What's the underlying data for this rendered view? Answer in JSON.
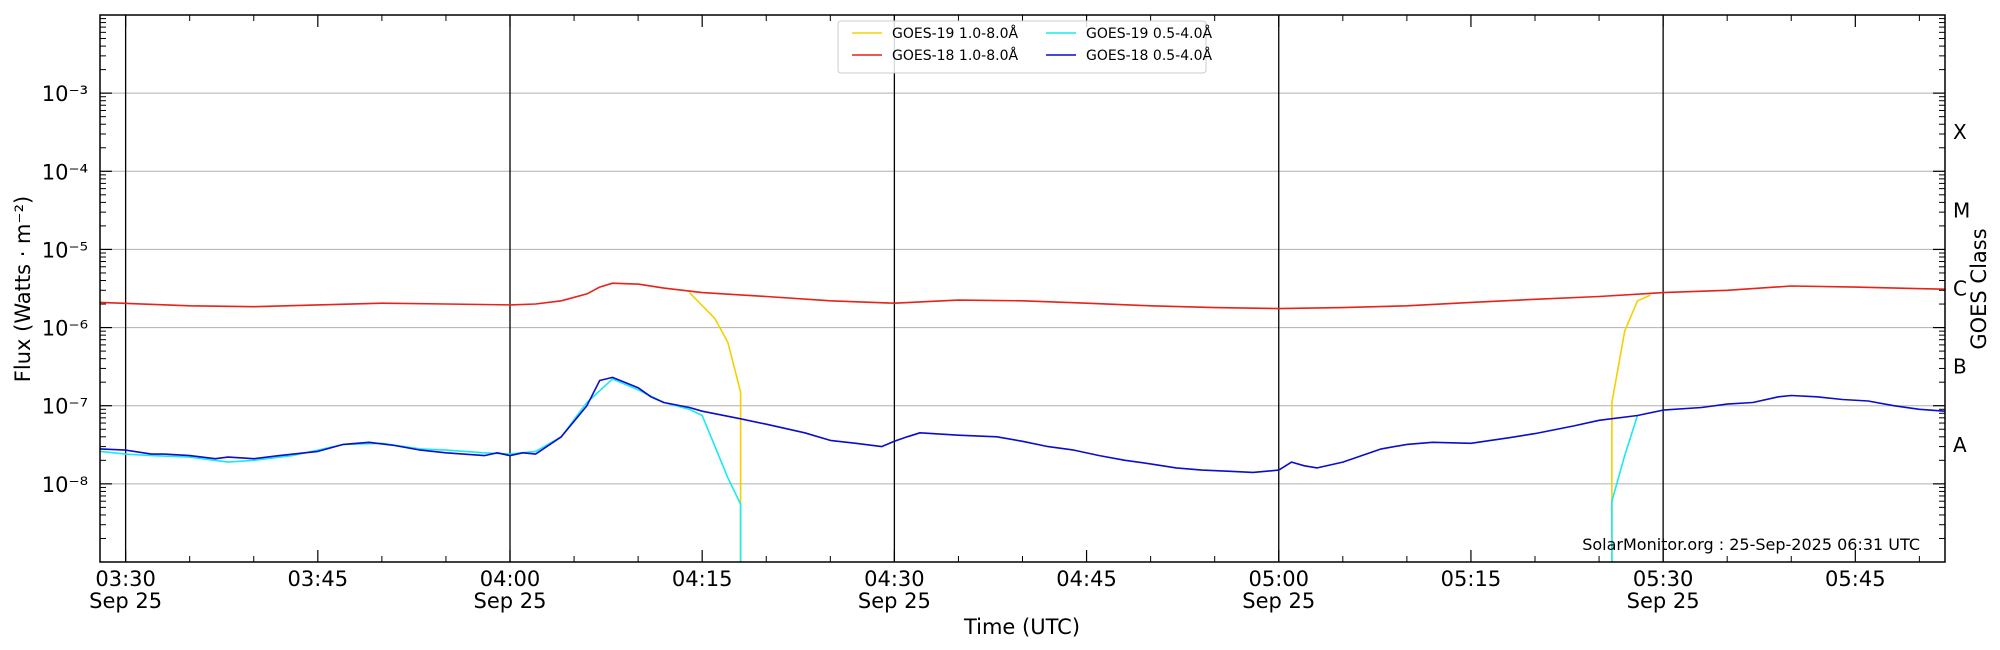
{
  "chart_data": {
    "type": "line",
    "xlabel": "Time (UTC)",
    "ylabel": "Flux (Watts · m⁻²)",
    "ylabel_right": "GOES Class",
    "credit": "SolarMonitor.org : 25-Sep-2025 06:31 UTC",
    "yscale": "log",
    "xlim": [
      "03:28",
      "05:52"
    ],
    "ylim": [
      1e-09,
      0.01
    ],
    "grid": "horizontal",
    "legend_position": "top-center",
    "x_ticks": [
      {
        "time": "03:30",
        "label": "03:30",
        "sub": "Sep 25"
      },
      {
        "time": "03:45",
        "label": "03:45",
        "sub": ""
      },
      {
        "time": "04:00",
        "label": "04:00",
        "sub": "Sep 25"
      },
      {
        "time": "04:15",
        "label": "04:15",
        "sub": ""
      },
      {
        "time": "04:30",
        "label": "04:30",
        "sub": "Sep 25"
      },
      {
        "time": "04:45",
        "label": "04:45",
        "sub": ""
      },
      {
        "time": "05:00",
        "label": "05:00",
        "sub": "Sep 25"
      },
      {
        "time": "05:15",
        "label": "05:15",
        "sub": ""
      },
      {
        "time": "05:30",
        "label": "05:30",
        "sub": "Sep 25"
      },
      {
        "time": "05:45",
        "label": "05:45",
        "sub": ""
      }
    ],
    "vertical_lines": [
      "03:30",
      "04:00",
      "04:30",
      "05:00",
      "05:30"
    ],
    "y_ticks": [
      {
        "value": 1e-08,
        "label": "10⁻⁸"
      },
      {
        "value": 1e-07,
        "label": "10⁻⁷"
      },
      {
        "value": 1e-06,
        "label": "10⁻⁶"
      },
      {
        "value": 1e-05,
        "label": "10⁻⁵"
      },
      {
        "value": 0.0001,
        "label": "10⁻⁴"
      },
      {
        "value": 0.001,
        "label": "10⁻³"
      }
    ],
    "goes_classes": [
      {
        "label": "A",
        "value": 3.16e-08
      },
      {
        "label": "B",
        "value": 3.16e-07
      },
      {
        "label": "C",
        "value": 3.16e-06
      },
      {
        "label": "M",
        "value": 3.16e-05
      },
      {
        "label": "X",
        "value": 0.000316
      }
    ],
    "series": [
      {
        "name": "GOES-19 1.0-8.0Å",
        "color": "#f5d000",
        "segments": [
          {
            "x": [
              "04:14",
              "04:16",
              "04:17",
              "04:18",
              "04:18"
            ],
            "y": [
              2.8e-06,
              1.3e-06,
              6.5e-07,
              1.5e-07,
              1e-09
            ]
          },
          {
            "x": [
              "05:26",
              "05:26",
              "05:27",
              "05:28",
              "05:29"
            ],
            "y": [
              1e-09,
              1.1e-07,
              9e-07,
              2.2e-06,
              2.6e-06
            ]
          }
        ]
      },
      {
        "name": "GOES-18 1.0-8.0Å",
        "color": "#e8211a",
        "segments": [
          {
            "x": [
              "03:28",
              "03:35",
              "03:40",
              "03:45",
              "03:50",
              "03:55",
              "04:00",
              "04:02",
              "04:04",
              "04:06",
              "04:07",
              "04:08",
              "04:10",
              "04:12",
              "04:15",
              "04:20",
              "04:25",
              "04:30",
              "04:35",
              "04:40",
              "04:45",
              "04:50",
              "04:55",
              "05:00",
              "05:05",
              "05:10",
              "05:15",
              "05:20",
              "05:25",
              "05:30",
              "05:35",
              "05:40",
              "05:45",
              "05:52"
            ],
            "y": [
              2.1e-06,
              1.9e-06,
              1.85e-06,
              1.95e-06,
              2.05e-06,
              2e-06,
              1.95e-06,
              2e-06,
              2.2e-06,
              2.7e-06,
              3.3e-06,
              3.7e-06,
              3.6e-06,
              3.2e-06,
              2.8e-06,
              2.5e-06,
              2.2e-06,
              2.05e-06,
              2.25e-06,
              2.2e-06,
              2.05e-06,
              1.9e-06,
              1.8e-06,
              1.75e-06,
              1.8e-06,
              1.9e-06,
              2.1e-06,
              2.3e-06,
              2.5e-06,
              2.8e-06,
              3e-06,
              3.4e-06,
              3.3e-06,
              3.1e-06
            ]
          }
        ]
      },
      {
        "name": "GOES-19 0.5-4.0Å",
        "color": "#17eaf0",
        "segments": [
          {
            "x": [
              "03:28",
              "03:30",
              "03:32",
              "03:35",
              "03:38",
              "03:40",
              "03:43",
              "03:45",
              "03:47",
              "03:50",
              "03:53",
              "03:55",
              "03:58",
              "04:00",
              "04:02",
              "04:04",
              "04:06",
              "04:08",
              "04:10",
              "04:12",
              "04:14",
              "04:15",
              "04:16",
              "04:17",
              "04:18",
              "04:18"
            ],
            "y": [
              2.6e-08,
              2.4e-08,
              2.3e-08,
              2.2e-08,
              1.9e-08,
              2e-08,
              2.3e-08,
              2.7e-08,
              3.2e-08,
              3.3e-08,
              2.8e-08,
              2.7e-08,
              2.5e-08,
              2.4e-08,
              2.6e-08,
              4e-08,
              1.1e-07,
              2.2e-07,
              1.6e-07,
              1.1e-07,
              9e-08,
              7.5e-08,
              3e-08,
              1.2e-08,
              5.5e-09,
              1e-09
            ]
          },
          {
            "x": [
              "05:26",
              "05:26",
              "05:27",
              "05:28"
            ],
            "y": [
              1e-09,
              6e-09,
              2.3e-08,
              7.5e-08
            ]
          }
        ]
      },
      {
        "name": "GOES-18 0.5-4.0Å",
        "color": "#0c0ccc",
        "segments": [
          {
            "x": [
              "03:28",
              "03:30",
              "03:32",
              "03:33",
              "03:35",
              "03:37",
              "03:38",
              "03:40",
              "03:42",
              "03:45",
              "03:47",
              "03:49",
              "03:51",
              "03:53",
              "03:55",
              "03:58",
              "03:59",
              "04:00",
              "04:01",
              "04:02",
              "04:04",
              "04:06",
              "04:07",
              "04:08",
              "04:10",
              "04:11",
              "04:12",
              "04:14",
              "04:15",
              "04:18",
              "04:20",
              "04:23",
              "04:25",
              "04:27",
              "04:29",
              "04:30",
              "04:31",
              "04:32",
              "04:35",
              "04:38",
              "04:40",
              "04:42",
              "04:44",
              "04:46",
              "04:48",
              "04:50",
              "04:52",
              "04:54",
              "04:56",
              "04:58",
              "05:00",
              "05:01",
              "05:02",
              "05:03",
              "05:05",
              "05:08",
              "05:10",
              "05:12",
              "05:15",
              "05:18",
              "05:20",
              "05:23",
              "05:25",
              "05:28",
              "05:30",
              "05:33",
              "05:35",
              "05:37",
              "05:39",
              "05:40",
              "05:42",
              "05:44",
              "05:46",
              "05:48",
              "05:50",
              "05:52"
            ],
            "y": [
              2.8e-08,
              2.7e-08,
              2.4e-08,
              2.4e-08,
              2.3e-08,
              2.1e-08,
              2.2e-08,
              2.1e-08,
              2.3e-08,
              2.6e-08,
              3.2e-08,
              3.4e-08,
              3.1e-08,
              2.7e-08,
              2.5e-08,
              2.3e-08,
              2.5e-08,
              2.3e-08,
              2.5e-08,
              2.4e-08,
              4e-08,
              1e-07,
              2.1e-07,
              2.3e-07,
              1.7e-07,
              1.3e-07,
              1.1e-07,
              9.5e-08,
              8.5e-08,
              6.8e-08,
              5.8e-08,
              4.5e-08,
              3.6e-08,
              3.3e-08,
              3e-08,
              3.5e-08,
              4e-08,
              4.5e-08,
              4.2e-08,
              4e-08,
              3.5e-08,
              3e-08,
              2.7e-08,
              2.3e-08,
              2e-08,
              1.8e-08,
              1.6e-08,
              1.5e-08,
              1.45e-08,
              1.4e-08,
              1.5e-08,
              1.9e-08,
              1.7e-08,
              1.6e-08,
              1.9e-08,
              2.8e-08,
              3.2e-08,
              3.4e-08,
              3.3e-08,
              3.9e-08,
              4.4e-08,
              5.5e-08,
              6.5e-08,
              7.5e-08,
              8.8e-08,
              9.5e-08,
              1.05e-07,
              1.1e-07,
              1.3e-07,
              1.35e-07,
              1.3e-07,
              1.2e-07,
              1.15e-07,
              1e-07,
              9e-08,
              8.5e-08
            ]
          }
        ]
      }
    ]
  }
}
